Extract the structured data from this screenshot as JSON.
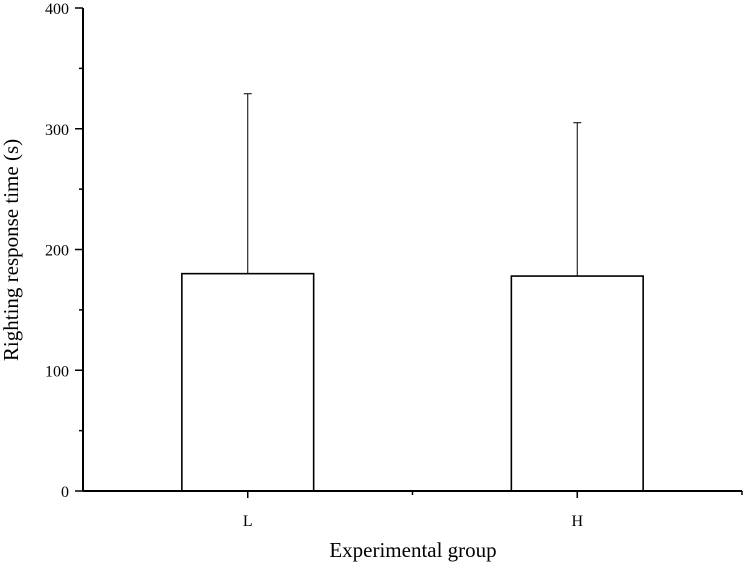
{
  "chart_data": {
    "type": "bar",
    "title": "",
    "xlabel": "Experimental group",
    "ylabel": "Righting response time (s)",
    "categories": [
      "L",
      "H"
    ],
    "values": [
      180,
      178
    ],
    "error_upper": [
      329,
      305
    ],
    "ylim": [
      0,
      400
    ],
    "yticks": [
      0,
      100,
      200,
      300,
      400
    ],
    "ytick_labels": [
      "0",
      "100",
      "200",
      "300",
      "400"
    ],
    "bar_fill": "#ffffff",
    "bar_stroke": "#000000",
    "grid": false,
    "legend": "none"
  }
}
